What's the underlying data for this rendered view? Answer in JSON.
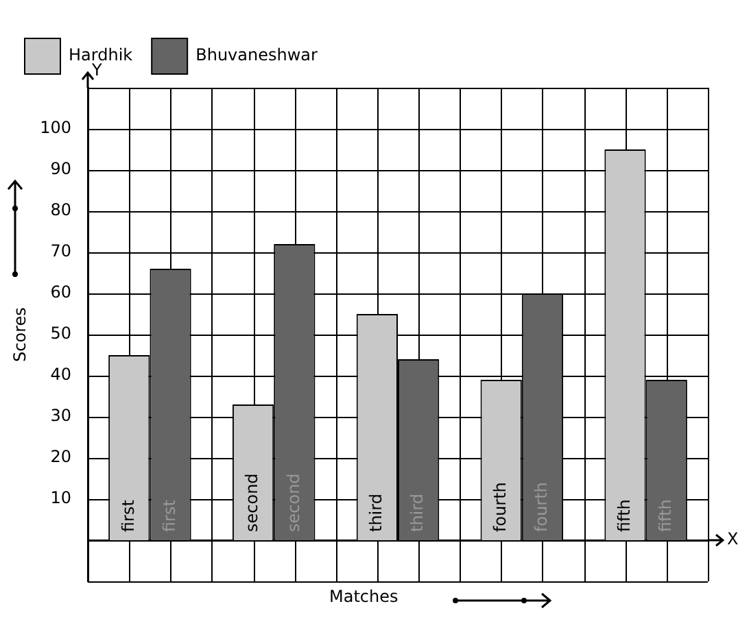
{
  "chart_data": {
    "type": "bar",
    "xlabel": "Matches",
    "ylabel": "Scores",
    "categories": [
      "first",
      "second",
      "third",
      "fourth",
      "fifth"
    ],
    "series": [
      {
        "name": "Hardhik",
        "color": "#c8c8c8",
        "values": [
          45,
          33,
          55,
          39,
          95
        ]
      },
      {
        "name": "Bhuvaneshwar",
        "color": "#646464",
        "values": [
          66,
          72,
          44,
          60,
          39
        ]
      }
    ],
    "ylim": [
      -10,
      110
    ],
    "yticks": [
      {
        "value": 0,
        "label": null
      },
      10,
      20,
      30,
      40,
      50,
      60,
      70,
      80,
      90,
      100
    ],
    "grid": true,
    "legend": "top left",
    "annotations": [
      "X",
      "Y"
    ]
  }
}
